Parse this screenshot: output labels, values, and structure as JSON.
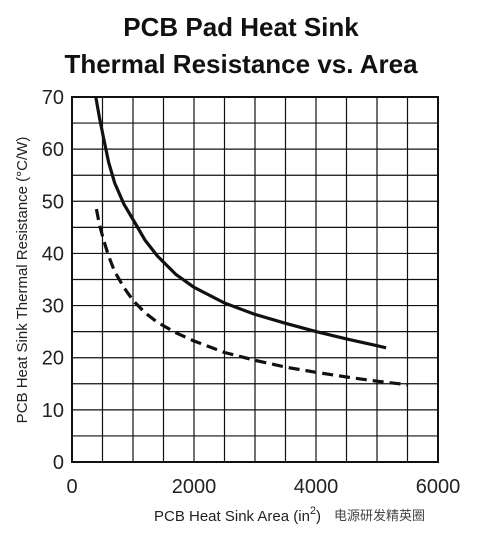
{
  "chart_data": {
    "type": "line",
    "title": "PCB Pad Heat Sink",
    "subtitle": "Thermal Resistance vs. Area",
    "xlabel": "PCB Heat Sink Area (in²)",
    "xlabel_main": "PCB Heat Sink Area (",
    "xlabel_unit": "in",
    "xlabel_sup": "2",
    "xlabel_close": ")",
    "ylabel": "PCB Heat Sink Thermal Resistance (°C/W)",
    "xlim": [
      0,
      6000
    ],
    "ylim": [
      0,
      70
    ],
    "xticks": [
      "0",
      "2000",
      "4000",
      "6000"
    ],
    "yticks": [
      "0",
      "10",
      "20",
      "30",
      "40",
      "50",
      "60",
      "70"
    ],
    "grid": true,
    "series": [
      {
        "style": "solid",
        "color": "#111111",
        "x": [
          390,
          450,
          520,
          600,
          700,
          850,
          1000,
          1200,
          1400,
          1700,
          2000,
          2500,
          3000,
          3500,
          4000,
          4500,
          5000,
          5150
        ],
        "y": [
          70,
          66,
          62,
          57.5,
          53.5,
          49.5,
          46.5,
          42.5,
          39.5,
          36,
          33.5,
          30.5,
          28.3,
          26.6,
          25,
          23.6,
          22.3,
          21.9
        ]
      },
      {
        "style": "dashed",
        "color": "#111111",
        "x": [
          400,
          450,
          520,
          600,
          700,
          850,
          1000,
          1200,
          1400,
          1700,
          2000,
          2500,
          3000,
          3500,
          4000,
          4500,
          5000,
          5500
        ],
        "y": [
          48.5,
          45.5,
          42.5,
          39.5,
          36.5,
          33.5,
          31,
          28.6,
          26.8,
          24.8,
          23.2,
          21,
          19.5,
          18.2,
          17.2,
          16.3,
          15.5,
          14.8
        ]
      }
    ]
  },
  "watermark": "电源研发精英圈"
}
